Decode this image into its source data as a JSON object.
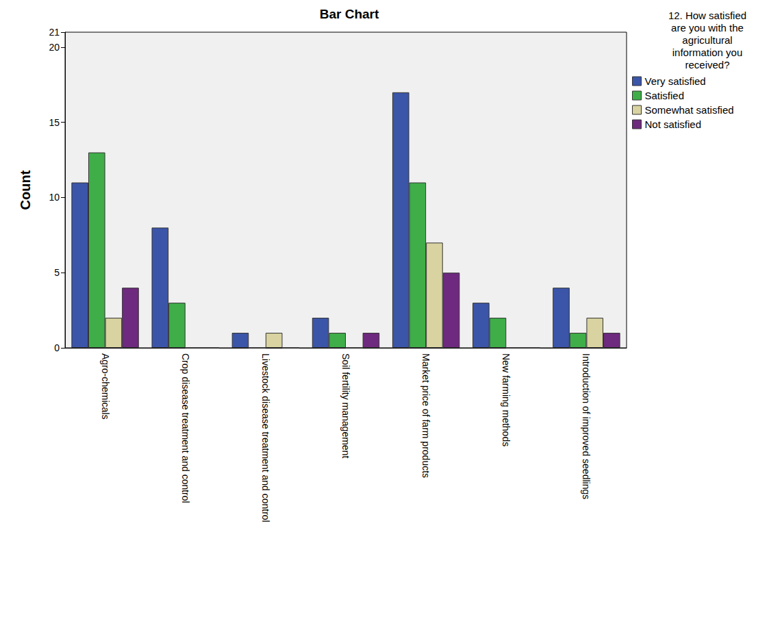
{
  "chart_data": {
    "type": "bar",
    "title": "Bar Chart",
    "y_label": "Count",
    "legend_title": "12. How satisfied are you with the agricultural information you received?",
    "categories": [
      "Agro-chemicals",
      "Crop disease treatment and control",
      "Livestock disease treatment and control",
      "Soil fertility management",
      "Market price of farm products",
      "New farming methods",
      "Introduction of improved seedlings"
    ],
    "series": [
      {
        "name": "Very satisfied",
        "color": "#3b55a8",
        "values": [
          11,
          8,
          1,
          2,
          17,
          3,
          4
        ]
      },
      {
        "name": "Satisfied",
        "color": "#3fae49",
        "values": [
          13,
          3,
          0,
          1,
          11,
          2,
          1
        ]
      },
      {
        "name": "Somewhat satisfied",
        "color": "#d8d3a0",
        "values": [
          2,
          0,
          1,
          0,
          7,
          0,
          2
        ]
      },
      {
        "name": "Not satisfied",
        "color": "#6e2a7e",
        "values": [
          4,
          0,
          0,
          1,
          5,
          0,
          1
        ]
      }
    ],
    "ylim": [
      0,
      21
    ],
    "yticks": [
      0,
      5,
      10,
      15,
      20
    ],
    "grid": false,
    "legend": "right"
  }
}
